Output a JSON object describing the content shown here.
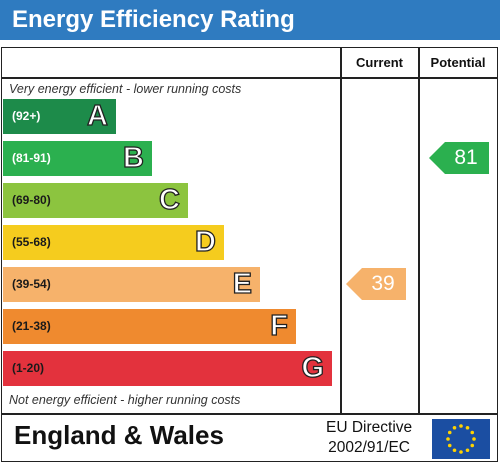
{
  "title": "Energy Efficiency Rating",
  "columns": {
    "current": "Current",
    "potential": "Potential"
  },
  "top_note": "Very energy efficient - lower running costs",
  "bottom_note": "Not energy efficient - higher running costs",
  "footer": {
    "region": "England & Wales",
    "directive_line1": "EU Directive",
    "directive_line2": "2002/91/EC"
  },
  "icons": {
    "flag": "eu-flag-icon",
    "stars": "star-icon"
  },
  "colors": {
    "header": "#2f7bc0",
    "flag": "#1b4ea2",
    "star": "#ffd200"
  },
  "chart_data": {
    "type": "bar",
    "categories": [
      "A",
      "B",
      "C",
      "D",
      "E",
      "F",
      "G"
    ],
    "bands": [
      {
        "range": "(92+)",
        "letter": "A",
        "color": "#1d8b4a",
        "text_color": "#ffffff"
      },
      {
        "range": "(81-91)",
        "letter": "B",
        "color": "#2bb04f",
        "text_color": "#ffffff"
      },
      {
        "range": "(69-80)",
        "letter": "C",
        "color": "#8cc43f",
        "text_color": "#1a1a1a"
      },
      {
        "range": "(55-68)",
        "letter": "D",
        "color": "#f5cc1e",
        "text_color": "#1a1a1a"
      },
      {
        "range": "(39-54)",
        "letter": "E",
        "color": "#f6b26b",
        "text_color": "#1a1a1a"
      },
      {
        "range": "(21-38)",
        "letter": "F",
        "color": "#ef8a2f",
        "text_color": "#1a1a1a"
      },
      {
        "range": "(1-20)",
        "letter": "G",
        "color": "#e3323d",
        "text_color": "#1a1a1a"
      }
    ],
    "ratings": {
      "current": {
        "value": "39",
        "band": "E",
        "color": "#f6b26b"
      },
      "potential": {
        "value": "81",
        "band": "B",
        "color": "#2bb04f"
      }
    }
  }
}
